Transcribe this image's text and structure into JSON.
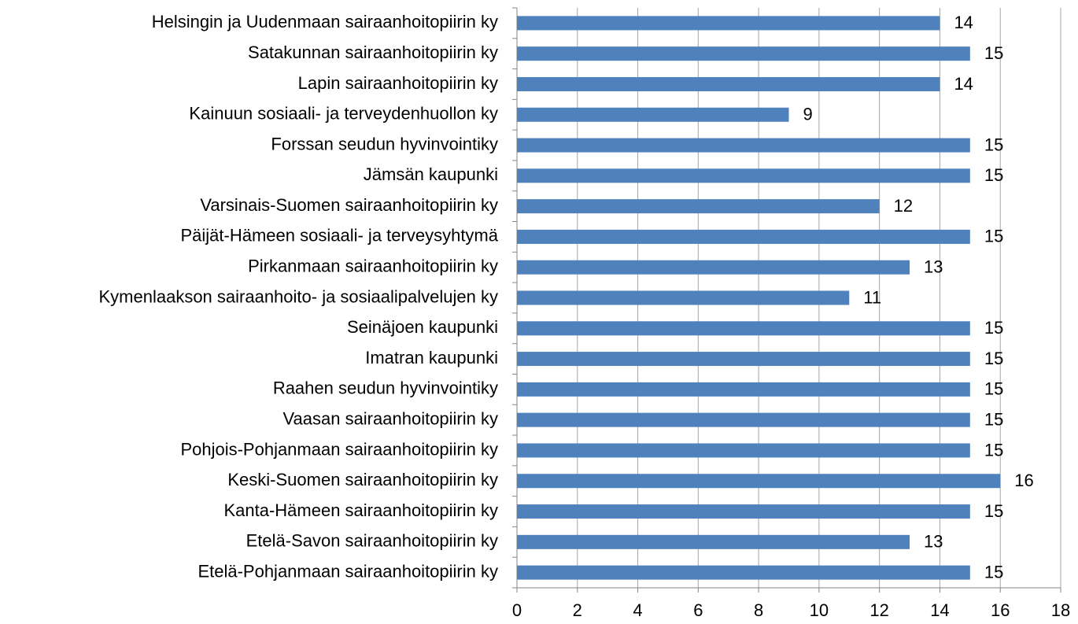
{
  "chart_data": {
    "type": "barh",
    "categories": [
      "Helsingin ja Uudenmaan sairaanhoitopiirin ky",
      "Satakunnan sairaanhoitopiirin ky",
      "Lapin sairaanhoitopiirin ky",
      "Kainuun sosiaali- ja terveydenhuollon ky",
      "Forssan seudun hyvinvointiky",
      "Jämsän kaupunki",
      "Varsinais-Suomen sairaanhoitopiirin ky",
      "Päijät-Hämeen sosiaali- ja terveysyhtymä",
      "Pirkanmaan sairaanhoitopiirin ky",
      "Kymenlaakson sairaanhoito- ja sosiaalipalvelujen ky",
      "Seinäjoen kaupunki",
      "Imatran kaupunki",
      "Raahen seudun hyvinvointiky",
      "Vaasan sairaanhoitopiirin ky",
      "Pohjois-Pohjanmaan sairaanhoitopiirin ky",
      "Keski-Suomen sairaanhoitopiirin ky",
      "Kanta-Hämeen sairaanhoitopiirin ky",
      "Etelä-Savon sairaanhoitopiirin ky",
      "Etelä-Pohjanmaan sairaanhoitopiirin ky"
    ],
    "values": [
      14,
      15,
      14,
      9,
      15,
      15,
      12,
      15,
      13,
      11,
      15,
      15,
      15,
      15,
      15,
      16,
      15,
      13,
      15
    ],
    "color": "#4f81bd",
    "xlim": [
      0,
      18
    ],
    "xticks": [
      0,
      2,
      4,
      6,
      8,
      10,
      12,
      14,
      16,
      18
    ],
    "grid": true
  }
}
